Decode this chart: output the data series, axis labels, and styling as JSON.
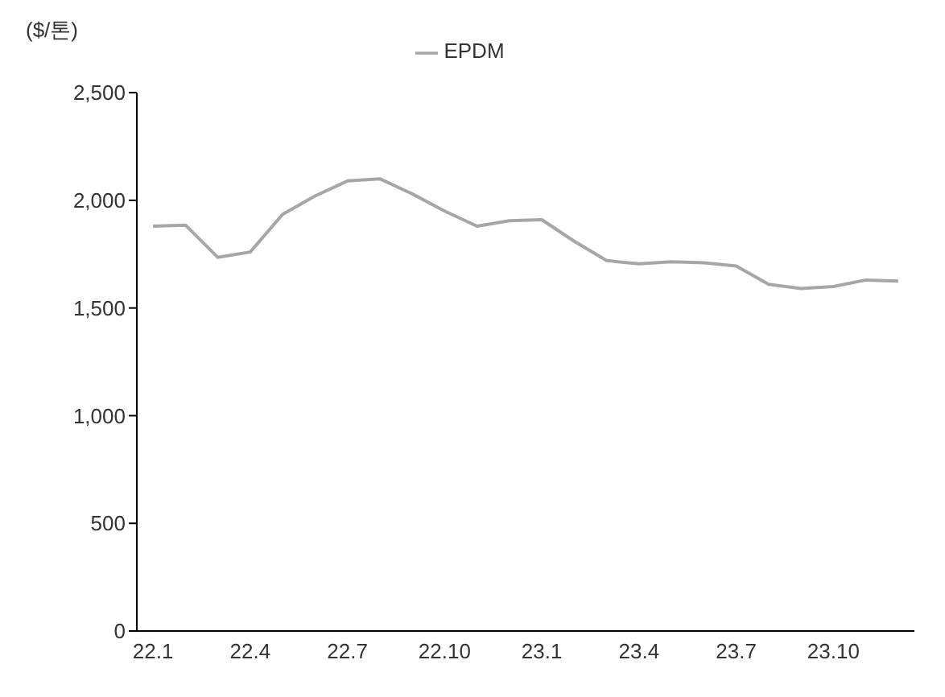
{
  "chart_data": {
    "type": "line",
    "ylabel": "($/톤)",
    "categories": [
      "22.1",
      null,
      null,
      "22.4",
      null,
      null,
      "22.7",
      null,
      null,
      "22.10",
      null,
      null,
      "23.1",
      null,
      null,
      "23.4",
      null,
      null,
      "23.7",
      null,
      null,
      "23.10",
      null,
      null
    ],
    "series": [
      {
        "name": "EPDM",
        "color": "#a6a6a6",
        "values": [
          1880,
          1885,
          1735,
          1760,
          1935,
          2020,
          2090,
          2100,
          2030,
          1950,
          1880,
          1905,
          1910,
          1810,
          1720,
          1705,
          1715,
          1710,
          1695,
          1610,
          1590,
          1600,
          1630,
          1625
        ]
      }
    ],
    "ylim": [
      0,
      2500
    ],
    "yticks": [
      {
        "value": 0,
        "label": "0"
      },
      {
        "value": 500,
        "label": "500"
      },
      {
        "value": 1000,
        "label": "1,000"
      },
      {
        "value": 1500,
        "label": "1,500"
      },
      {
        "value": 2000,
        "label": "2,000"
      },
      {
        "value": 2500,
        "label": "2,500"
      }
    ],
    "grid": false,
    "legend": "top",
    "marker": "none",
    "line_style": "solid"
  }
}
